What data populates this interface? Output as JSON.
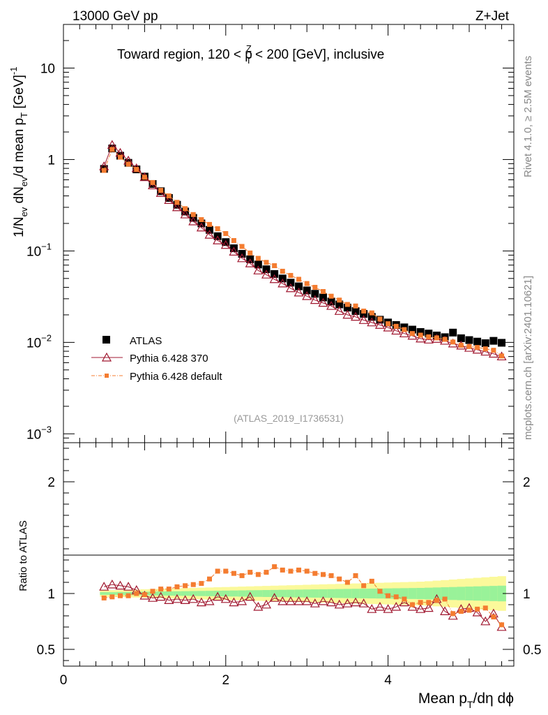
{
  "header": {
    "left": "13000 GeV pp",
    "right": "Z+Jet"
  },
  "side": {
    "rivet": "Rivet 4.1.0, ≥ 2.5M events",
    "mcplots": "mcplots.cern.ch [arXiv:2401.10621]"
  },
  "colors": {
    "atlas": "#000000",
    "pythia370": "#a01830",
    "pythia_default": "#f47c30",
    "band_inner": "#99f299",
    "band_outer": "#fbf99b"
  },
  "chart_data": [
    {
      "type": "scatter",
      "title": "Toward region, 120 < p_T^Z < 200 [GeV], inclusive",
      "title_parts": {
        "pre": "Toward region, 120 < p",
        "sup": "Z",
        "sub": "T",
        "post": " < 200 [GeV], inclusive"
      },
      "ylabel": "1/N_ev dN_ev/d mean p_T [GeV]^-1",
      "ylabel_parts": {
        "a": "1/N",
        "a_sub": "ev",
        "b": " dN",
        "b_sub": "ev",
        "c": "/d mean p",
        "c_sub": "T",
        "d": " [GeV]",
        "d_sup": "-1"
      },
      "yscale": "log",
      "ylim": [
        0.0008,
        30
      ],
      "xlim": [
        0,
        5.55
      ],
      "yticks": [
        {
          "value": 10,
          "base": "10",
          "exp": ""
        },
        {
          "value": 1,
          "base": "1",
          "exp": ""
        },
        {
          "value": 0.1,
          "base": "10",
          "exp": "−1"
        },
        {
          "value": 0.01,
          "base": "10",
          "exp": "−2"
        },
        {
          "value": 0.001,
          "base": "10",
          "exp": "−3"
        }
      ],
      "x": [
        0.5,
        0.6,
        0.7,
        0.8,
        0.9,
        1.0,
        1.1,
        1.2,
        1.3,
        1.4,
        1.5,
        1.6,
        1.7,
        1.8,
        1.9,
        2.0,
        2.1,
        2.2,
        2.3,
        2.4,
        2.5,
        2.6,
        2.7,
        2.8,
        2.9,
        3.0,
        3.1,
        3.2,
        3.3,
        3.4,
        3.5,
        3.6,
        3.7,
        3.8,
        3.9,
        4.0,
        4.1,
        4.2,
        4.3,
        4.4,
        4.5,
        4.6,
        4.7,
        4.8,
        4.9,
        5.0,
        5.1,
        5.2,
        5.3,
        5.4
      ],
      "series": [
        {
          "name": "ATLAS",
          "marker": "square",
          "values": [
            0.79,
            1.32,
            1.1,
            0.92,
            0.78,
            0.65,
            0.54,
            0.45,
            0.38,
            0.32,
            0.27,
            0.23,
            0.2,
            0.17,
            0.145,
            0.125,
            0.107,
            0.093,
            0.081,
            0.071,
            0.063,
            0.056,
            0.05,
            0.045,
            0.041,
            0.037,
            0.034,
            0.031,
            0.028,
            0.026,
            0.024,
            0.022,
            0.0205,
            0.019,
            0.0177,
            0.0165,
            0.0155,
            0.0146,
            0.0138,
            0.013,
            0.0125,
            0.0119,
            0.0114,
            0.0128,
            0.0111,
            0.0106,
            0.0102,
            0.0098,
            0.0104,
            0.0099
          ]
        },
        {
          "name": "Pythia 6.428 370",
          "marker": "triangle-open",
          "values": [
            0.84,
            1.44,
            1.18,
            0.97,
            0.8,
            0.64,
            0.52,
            0.43,
            0.36,
            0.3,
            0.25,
            0.21,
            0.18,
            0.15,
            0.13,
            0.116,
            0.098,
            0.083,
            0.073,
            0.061,
            0.055,
            0.049,
            0.044,
            0.039,
            0.035,
            0.032,
            0.029,
            0.027,
            0.025,
            0.022,
            0.02,
            0.019,
            0.0175,
            0.0165,
            0.0155,
            0.0145,
            0.0134,
            0.0125,
            0.0118,
            0.011,
            0.0107,
            0.0109,
            0.0104,
            0.0097,
            0.0092,
            0.0087,
            0.0083,
            0.0079,
            0.0075,
            0.007
          ]
        },
        {
          "name": "Pythia 6.428 default",
          "marker": "square-small",
          "values": [
            0.76,
            1.29,
            1.06,
            0.89,
            0.78,
            0.64,
            0.56,
            0.46,
            0.4,
            0.34,
            0.29,
            0.25,
            0.22,
            0.195,
            0.175,
            0.155,
            0.13,
            0.112,
            0.095,
            0.083,
            0.075,
            0.069,
            0.06,
            0.054,
            0.049,
            0.044,
            0.04,
            0.036,
            0.032,
            0.029,
            0.026,
            0.025,
            0.022,
            0.021,
            0.018,
            0.016,
            0.015,
            0.0138,
            0.0125,
            0.012,
            0.0115,
            0.0112,
            0.0108,
            0.0101,
            0.0093,
            0.009,
            0.0088,
            0.0085,
            0.0082,
            0.0071
          ]
        }
      ]
    },
    {
      "type": "scatter",
      "ylabel": "Ratio to ATLAS",
      "ylim": [
        0.35,
        2.35
      ],
      "xlim": [
        0,
        5.55
      ],
      "xlabel": "Mean p_T/dη dϕ",
      "xlabel_parts": {
        "a": "Mean p",
        "a_sub": "T",
        "b": "/dη dϕ"
      },
      "xticks": [
        0,
        2,
        4
      ],
      "yticks": [
        {
          "value": 0.5,
          "label": "0.5"
        },
        {
          "value": 1,
          "label": "1"
        },
        {
          "value": 2,
          "label": "2"
        }
      ],
      "x": [
        0.5,
        0.6,
        0.7,
        0.8,
        0.9,
        1.0,
        1.1,
        1.2,
        1.3,
        1.4,
        1.5,
        1.6,
        1.7,
        1.8,
        1.9,
        2.0,
        2.1,
        2.2,
        2.3,
        2.4,
        2.5,
        2.6,
        2.7,
        2.8,
        2.9,
        3.0,
        3.1,
        3.2,
        3.3,
        3.4,
        3.5,
        3.6,
        3.7,
        3.8,
        3.9,
        4.0,
        4.1,
        4.2,
        4.3,
        4.4,
        4.5,
        4.6,
        4.7,
        4.8,
        4.9,
        5.0,
        5.1,
        5.2,
        5.3,
        5.4
      ],
      "band_inner_halfwidth": [
        0.012,
        0.012,
        0.013,
        0.014,
        0.015,
        0.016,
        0.017,
        0.018,
        0.019,
        0.02,
        0.021,
        0.022,
        0.023,
        0.024,
        0.025,
        0.026,
        0.027,
        0.028,
        0.029,
        0.03,
        0.031,
        0.032,
        0.033,
        0.034,
        0.035,
        0.036,
        0.037,
        0.038,
        0.039,
        0.04,
        0.041,
        0.042,
        0.043,
        0.044,
        0.045,
        0.046,
        0.047,
        0.048,
        0.049,
        0.05,
        0.052,
        0.054,
        0.056,
        0.058,
        0.06,
        0.062,
        0.064,
        0.066,
        0.068,
        0.07
      ],
      "band_outer_halfwidth": [
        0.03,
        0.03,
        0.032,
        0.034,
        0.036,
        0.038,
        0.04,
        0.042,
        0.044,
        0.046,
        0.048,
        0.05,
        0.052,
        0.054,
        0.056,
        0.058,
        0.06,
        0.062,
        0.064,
        0.066,
        0.068,
        0.07,
        0.072,
        0.074,
        0.076,
        0.078,
        0.08,
        0.082,
        0.084,
        0.086,
        0.088,
        0.09,
        0.092,
        0.094,
        0.096,
        0.098,
        0.1,
        0.102,
        0.104,
        0.106,
        0.11,
        0.115,
        0.12,
        0.125,
        0.13,
        0.135,
        0.14,
        0.145,
        0.15,
        0.155
      ],
      "series": [
        {
          "name": "Pythia 6.428 370",
          "marker": "triangle-open",
          "values": [
            1.06,
            1.08,
            1.07,
            1.06,
            1.03,
            0.98,
            0.96,
            0.97,
            0.94,
            0.95,
            0.94,
            0.95,
            0.92,
            0.93,
            0.97,
            0.95,
            0.92,
            0.93,
            0.97,
            0.88,
            0.9,
            0.96,
            0.93,
            0.93,
            0.93,
            0.93,
            0.91,
            0.93,
            0.92,
            0.9,
            0.91,
            0.92,
            0.91,
            0.86,
            0.88,
            0.86,
            0.88,
            0.92,
            0.88,
            0.86,
            0.87,
            0.95,
            0.84,
            0.8,
            0.86,
            0.87,
            0.83,
            0.75,
            0.82,
            0.7
          ]
        },
        {
          "name": "Pythia 6.428 default",
          "marker": "square-small",
          "values": [
            0.96,
            0.97,
            0.98,
            0.98,
            1.0,
            0.99,
            1.02,
            1.04,
            1.04,
            1.06,
            1.07,
            1.08,
            1.09,
            1.13,
            1.2,
            1.2,
            1.18,
            1.16,
            1.19,
            1.17,
            1.19,
            1.24,
            1.21,
            1.2,
            1.21,
            1.2,
            1.18,
            1.17,
            1.16,
            1.13,
            1.1,
            1.16,
            1.07,
            1.11,
            1.02,
            0.98,
            0.97,
            0.95,
            0.9,
            0.92,
            0.92,
            0.94,
            0.95,
            0.82,
            0.84,
            0.85,
            0.86,
            0.87,
            0.79,
            0.72
          ]
        }
      ]
    }
  ],
  "legend": [
    {
      "label": "ATLAS",
      "marker": "square"
    },
    {
      "label": "Pythia 6.428 370",
      "marker": "triangle-open"
    },
    {
      "label": "Pythia 6.428 default",
      "marker": "square-small"
    }
  ],
  "watermark": "(ATLAS_2019_I1736531)"
}
